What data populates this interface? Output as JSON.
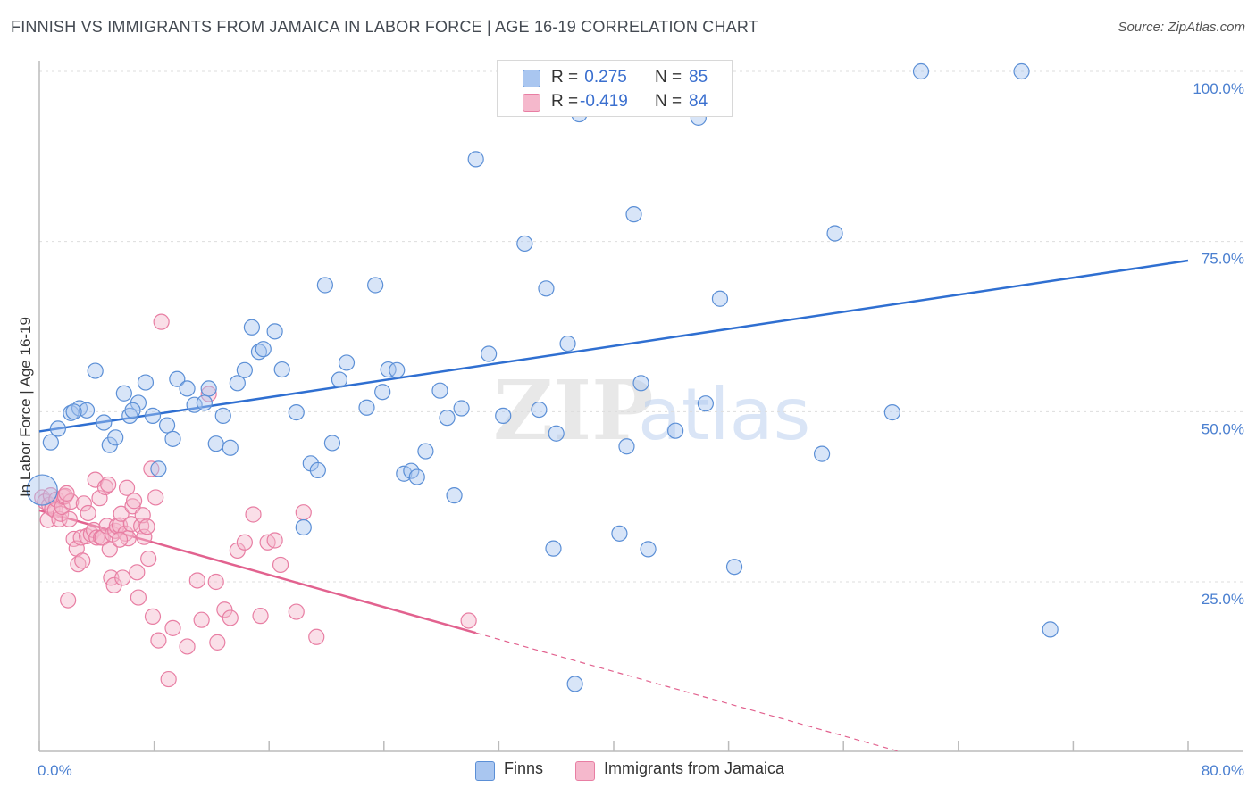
{
  "title": "FINNISH VS IMMIGRANTS FROM JAMAICA IN LABOR FORCE | AGE 16-19 CORRELATION CHART",
  "source": "Source: ZipAtlas.com",
  "watermark": {
    "zip": "ZIP",
    "atlas": "atlas"
  },
  "colors": {
    "finns_fill": "#a9c6f0",
    "finns_stroke": "#5b8fd6",
    "finns_line": "#2f6fd1",
    "jamaica_fill": "#f5b8cc",
    "jamaica_stroke": "#e87ea3",
    "jamaica_line": "#e2628f",
    "tick_text": "#4a7fd0",
    "grid": "#dddddd"
  },
  "legend_top": [
    {
      "r_label": "R =",
      "r_value": " 0.275",
      "n_label": "N =",
      "n_value": "85"
    },
    {
      "r_label": "R =",
      "r_value": "-0.419",
      "n_label": "N =",
      "n_value": "84"
    }
  ],
  "legend_bottom": [
    "Finns",
    "Immigrants from Jamaica"
  ],
  "chart_data": {
    "type": "scatter",
    "xlabel": "",
    "ylabel": "In Labor Force | Age 16-19",
    "xlim": [
      0,
      80
    ],
    "ylim": [
      0,
      104
    ],
    "x_tick_labels": [
      "0.0%",
      "80.0%"
    ],
    "y_ticks": [
      25,
      50,
      75,
      100
    ],
    "y_tick_labels": [
      "25.0%",
      "50.0%",
      "75.0%",
      "100.0%"
    ],
    "grid": true,
    "legend": "top-center",
    "series": [
      {
        "name": "Finns",
        "r": 0.275,
        "n": 85,
        "trend": {
          "x": [
            0,
            80
          ],
          "y": [
            47.1,
            72.2
          ]
        },
        "points": [
          [
            0.2,
            38.5
          ],
          [
            0.8,
            45.5
          ],
          [
            1.3,
            47.5
          ],
          [
            2.2,
            49.8
          ],
          [
            2.8,
            50.5
          ],
          [
            3.3,
            50.2
          ],
          [
            3.9,
            56.0
          ],
          [
            4.5,
            48.4
          ],
          [
            4.9,
            45.1
          ],
          [
            5.3,
            46.2
          ],
          [
            5.9,
            52.7
          ],
          [
            6.3,
            49.4
          ],
          [
            6.9,
            51.3
          ],
          [
            7.4,
            54.3
          ],
          [
            7.9,
            49.4
          ],
          [
            8.3,
            41.6
          ],
          [
            8.9,
            48.0
          ],
          [
            9.3,
            46.0
          ],
          [
            9.6,
            54.8
          ],
          [
            10.3,
            53.4
          ],
          [
            10.8,
            51.0
          ],
          [
            11.8,
            53.4
          ],
          [
            12.3,
            45.3
          ],
          [
            12.8,
            49.4
          ],
          [
            13.3,
            44.7
          ],
          [
            13.8,
            54.2
          ],
          [
            14.3,
            56.1
          ],
          [
            14.8,
            62.4
          ],
          [
            15.3,
            58.8
          ],
          [
            15.6,
            59.2
          ],
          [
            16.4,
            61.8
          ],
          [
            16.9,
            56.2
          ],
          [
            17.9,
            49.9
          ],
          [
            18.4,
            33.0
          ],
          [
            18.9,
            42.4
          ],
          [
            19.4,
            41.4
          ],
          [
            19.9,
            68.6
          ],
          [
            20.4,
            45.4
          ],
          [
            20.9,
            54.7
          ],
          [
            21.4,
            57.2
          ],
          [
            23.4,
            68.6
          ],
          [
            22.8,
            50.6
          ],
          [
            23.9,
            52.9
          ],
          [
            24.3,
            56.2
          ],
          [
            24.9,
            56.1
          ],
          [
            25.4,
            40.9
          ],
          [
            25.9,
            41.3
          ],
          [
            26.3,
            40.4
          ],
          [
            26.9,
            44.2
          ],
          [
            27.9,
            53.1
          ],
          [
            28.9,
            37.7
          ],
          [
            28.4,
            49.1
          ],
          [
            29.4,
            50.5
          ],
          [
            30.4,
            87.1
          ],
          [
            31.3,
            58.5
          ],
          [
            32.3,
            49.4
          ],
          [
            33.3,
            100.0
          ],
          [
            33.8,
            74.7
          ],
          [
            34.8,
            50.3
          ],
          [
            35.3,
            68.1
          ],
          [
            35.8,
            29.9
          ],
          [
            36.8,
            60.0
          ],
          [
            37.3,
            10.0
          ],
          [
            37.9,
            100.0
          ],
          [
            37.6,
            93.7
          ],
          [
            40.4,
            32.1
          ],
          [
            40.9,
            44.9
          ],
          [
            41.4,
            79.0
          ],
          [
            41.9,
            54.2
          ],
          [
            42.4,
            29.8
          ],
          [
            44.3,
            47.2
          ],
          [
            45.9,
            93.2
          ],
          [
            46.4,
            51.2
          ],
          [
            47.4,
            66.6
          ],
          [
            48.4,
            27.2
          ],
          [
            54.5,
            43.8
          ],
          [
            55.4,
            76.2
          ],
          [
            59.4,
            49.9
          ],
          [
            61.4,
            100.0
          ],
          [
            68.4,
            100.0
          ],
          [
            70.4,
            18.0
          ],
          [
            11.5,
            51.3
          ],
          [
            6.5,
            50.2
          ],
          [
            2.4,
            50.0
          ],
          [
            36.0,
            46.8
          ]
        ]
      },
      {
        "name": "Immigrants from Jamaica",
        "r": -0.419,
        "n": 84,
        "trend": {
          "x": [
            0,
            30.4
          ],
          "y": [
            35.5,
            17.5
          ]
        },
        "trend_dashed": {
          "x": [
            30.4,
            60
          ],
          "y": [
            17.5,
            0.0
          ]
        },
        "points": [
          [
            0.2,
            37.4
          ],
          [
            0.4,
            36.8
          ],
          [
            0.6,
            34.1
          ],
          [
            0.7,
            36.3
          ],
          [
            0.8,
            37.7
          ],
          [
            0.9,
            35.8
          ],
          [
            1.1,
            35.5
          ],
          [
            1.2,
            37.1
          ],
          [
            1.4,
            34.2
          ],
          [
            1.5,
            35.0
          ],
          [
            1.6,
            36.0
          ],
          [
            1.7,
            37.5
          ],
          [
            1.8,
            37.6
          ],
          [
            2.0,
            22.3
          ],
          [
            2.1,
            34.2
          ],
          [
            2.2,
            36.8
          ],
          [
            2.4,
            31.3
          ],
          [
            2.6,
            29.9
          ],
          [
            2.7,
            27.6
          ],
          [
            2.9,
            31.5
          ],
          [
            3.0,
            28.1
          ],
          [
            3.1,
            36.5
          ],
          [
            3.3,
            31.7
          ],
          [
            3.4,
            35.1
          ],
          [
            3.6,
            32.0
          ],
          [
            3.8,
            32.6
          ],
          [
            3.9,
            40.0
          ],
          [
            4.0,
            31.5
          ],
          [
            4.2,
            37.3
          ],
          [
            4.3,
            31.5
          ],
          [
            4.4,
            31.5
          ],
          [
            4.6,
            38.9
          ],
          [
            4.7,
            33.2
          ],
          [
            4.8,
            39.3
          ],
          [
            5.0,
            25.6
          ],
          [
            5.1,
            32.0
          ],
          [
            5.2,
            24.5
          ],
          [
            5.3,
            32.5
          ],
          [
            5.4,
            33.2
          ],
          [
            5.6,
            33.3
          ],
          [
            5.7,
            35.0
          ],
          [
            5.8,
            25.6
          ],
          [
            6.0,
            32.1
          ],
          [
            6.1,
            38.8
          ],
          [
            6.2,
            31.4
          ],
          [
            6.4,
            33.5
          ],
          [
            6.5,
            36.1
          ],
          [
            6.6,
            36.9
          ],
          [
            6.8,
            26.4
          ],
          [
            6.9,
            22.7
          ],
          [
            7.1,
            33.2
          ],
          [
            7.2,
            34.8
          ],
          [
            7.3,
            31.6
          ],
          [
            7.5,
            33.1
          ],
          [
            7.6,
            28.4
          ],
          [
            7.8,
            41.6
          ],
          [
            7.9,
            19.9
          ],
          [
            8.1,
            37.4
          ],
          [
            8.3,
            16.4
          ],
          [
            8.5,
            63.2
          ],
          [
            9.0,
            10.7
          ],
          [
            9.3,
            18.2
          ],
          [
            10.3,
            15.5
          ],
          [
            11.0,
            25.2
          ],
          [
            11.3,
            19.4
          ],
          [
            11.8,
            52.6
          ],
          [
            12.3,
            25.0
          ],
          [
            12.4,
            16.1
          ],
          [
            12.9,
            20.9
          ],
          [
            13.3,
            19.7
          ],
          [
            13.8,
            29.6
          ],
          [
            14.3,
            30.8
          ],
          [
            14.9,
            34.9
          ],
          [
            15.4,
            20.0
          ],
          [
            15.9,
            30.8
          ],
          [
            16.4,
            31.1
          ],
          [
            16.8,
            27.5
          ],
          [
            17.9,
            20.6
          ],
          [
            18.4,
            35.2
          ],
          [
            19.3,
            16.9
          ],
          [
            29.9,
            19.3
          ],
          [
            4.9,
            29.8
          ],
          [
            5.6,
            31.2
          ],
          [
            1.9,
            38.0
          ]
        ]
      }
    ]
  }
}
